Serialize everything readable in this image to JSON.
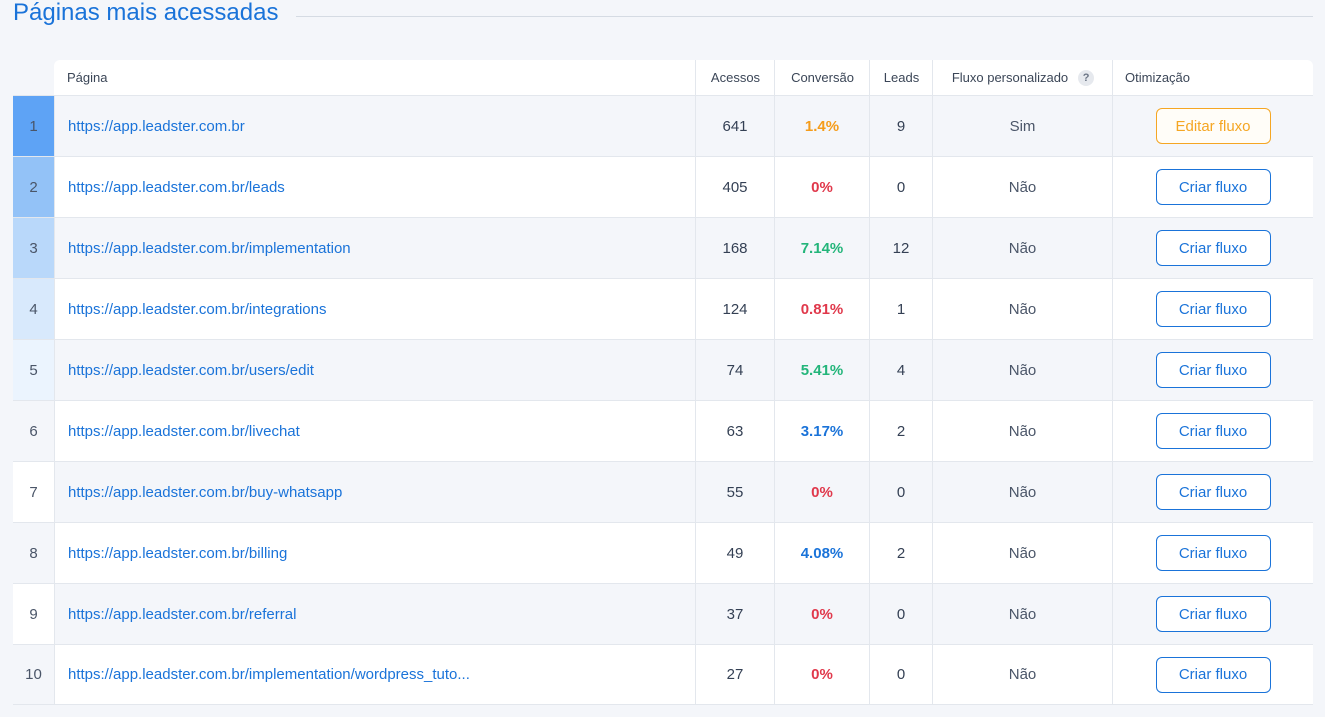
{
  "section": {
    "title": "Páginas mais acessadas"
  },
  "columns": {
    "pagina": "Página",
    "acessos": "Acessos",
    "conversao": "Conversão",
    "leads": "Leads",
    "fluxo": "Fluxo personalizado",
    "fluxo_help": "?",
    "otimizacao": "Otimização"
  },
  "colors": {
    "rank_bars": [
      "#5ea3f5",
      "#93c2f7",
      "#b9d8fa",
      "#d8e9fc",
      "#ebf4fe",
      "#f4f6fa",
      "#ffffff",
      "#f4f6fa",
      "#ffffff",
      "#f4f6fa"
    ],
    "conv_orange": "#f59c1a",
    "conv_red": "#e0384b",
    "conv_green": "#23b57a",
    "conv_blue": "#1a73d9"
  },
  "rows": [
    {
      "rank": "1",
      "url": "https://app.leadster.com.br",
      "acessos": "641",
      "conversao": "1.4%",
      "conv_color": "conv_orange",
      "leads": "9",
      "fluxo": "Sim",
      "action": "Editar fluxo",
      "action_style": "orange"
    },
    {
      "rank": "2",
      "url": "https://app.leadster.com.br/leads",
      "acessos": "405",
      "conversao": "0%",
      "conv_color": "conv_red",
      "leads": "0",
      "fluxo": "Não",
      "action": "Criar fluxo",
      "action_style": "blue"
    },
    {
      "rank": "3",
      "url": "https://app.leadster.com.br/implementation",
      "acessos": "168",
      "conversao": "7.14%",
      "conv_color": "conv_green",
      "leads": "12",
      "fluxo": "Não",
      "action": "Criar fluxo",
      "action_style": "blue"
    },
    {
      "rank": "4",
      "url": "https://app.leadster.com.br/integrations",
      "acessos": "124",
      "conversao": "0.81%",
      "conv_color": "conv_red",
      "leads": "1",
      "fluxo": "Não",
      "action": "Criar fluxo",
      "action_style": "blue"
    },
    {
      "rank": "5",
      "url": "https://app.leadster.com.br/users/edit",
      "acessos": "74",
      "conversao": "5.41%",
      "conv_color": "conv_green",
      "leads": "4",
      "fluxo": "Não",
      "action": "Criar fluxo",
      "action_style": "blue"
    },
    {
      "rank": "6",
      "url": "https://app.leadster.com.br/livechat",
      "acessos": "63",
      "conversao": "3.17%",
      "conv_color": "conv_blue",
      "leads": "2",
      "fluxo": "Não",
      "action": "Criar fluxo",
      "action_style": "blue"
    },
    {
      "rank": "7",
      "url": "https://app.leadster.com.br/buy-whatsapp",
      "acessos": "55",
      "conversao": "0%",
      "conv_color": "conv_red",
      "leads": "0",
      "fluxo": "Não",
      "action": "Criar fluxo",
      "action_style": "blue"
    },
    {
      "rank": "8",
      "url": "https://app.leadster.com.br/billing",
      "acessos": "49",
      "conversao": "4.08%",
      "conv_color": "conv_blue",
      "leads": "2",
      "fluxo": "Não",
      "action": "Criar fluxo",
      "action_style": "blue"
    },
    {
      "rank": "9",
      "url": "https://app.leadster.com.br/referral",
      "acessos": "37",
      "conversao": "0%",
      "conv_color": "conv_red",
      "leads": "0",
      "fluxo": "Não",
      "action": "Criar fluxo",
      "action_style": "blue"
    },
    {
      "rank": "10",
      "url": "https://app.leadster.com.br/implementation/wordpress_tuto...",
      "acessos": "27",
      "conversao": "0%",
      "conv_color": "conv_red",
      "leads": "0",
      "fluxo": "Não",
      "action": "Criar fluxo",
      "action_style": "blue"
    }
  ]
}
